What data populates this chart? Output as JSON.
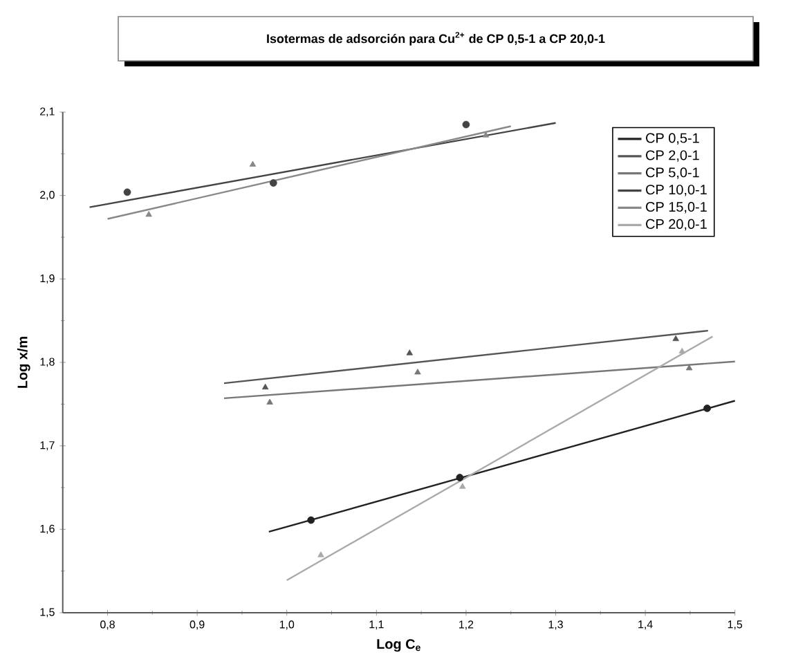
{
  "chart_data": {
    "type": "scatter",
    "title": "Isotermas de adsorción para Cu$^{2+}$ de CP 0,5-1 a CP 20,0-1",
    "xlabel": "Log C$_{e}$",
    "ylabel": "Log x/m",
    "xlim": [
      0.75,
      1.5
    ],
    "ylim": [
      1.5,
      2.1
    ],
    "xticks": [
      {
        "value": 0.8,
        "label": "0,8"
      },
      {
        "value": 0.9,
        "label": "0,9"
      },
      {
        "value": 1.0,
        "label": "1,0"
      },
      {
        "value": 1.1,
        "label": "1,1"
      },
      {
        "value": 1.2,
        "label": "1,2"
      },
      {
        "value": 1.3,
        "label": "1,3"
      },
      {
        "value": 1.4,
        "label": "1,4"
      },
      {
        "value": 1.5,
        "label": "1,5"
      }
    ],
    "yticks": [
      {
        "value": 1.5,
        "label": "1,5"
      },
      {
        "value": 1.6,
        "label": "1,6"
      },
      {
        "value": 1.7,
        "label": "1,7"
      },
      {
        "value": 1.8,
        "label": "1,8"
      },
      {
        "value": 1.9,
        "label": "1,9"
      },
      {
        "value": 2.0,
        "label": "2,0"
      },
      {
        "value": 2.1,
        "label": "2,1"
      }
    ],
    "grid": false,
    "legend": "top right",
    "series": [
      {
        "name": "CP 0,5-1",
        "type": "line",
        "marker": "none",
        "color": "#222222",
        "x": [
          0.98,
          1.5
        ],
        "values": [
          1.597,
          1.754
        ]
      },
      {
        "name": "CP 2,0-1",
        "type": "line",
        "marker": "none",
        "color": "#555555",
        "x": [
          0.93,
          1.47
        ],
        "values": [
          1.775,
          1.838
        ]
      },
      {
        "name": "CP 5,0-1",
        "type": "line",
        "marker": "none",
        "color": "#777777",
        "x": [
          0.93,
          1.5
        ],
        "values": [
          1.757,
          1.801
        ]
      },
      {
        "name": "CP 10,0-1",
        "type": "line",
        "marker": "none",
        "color": "#444444",
        "x": [
          0.78,
          1.3
        ],
        "values": [
          1.986,
          2.087
        ]
      },
      {
        "name": "CP 15,0-1",
        "type": "line",
        "marker": "none",
        "color": "#888888",
        "x": [
          0.8,
          1.25
        ],
        "values": [
          1.972,
          2.083
        ]
      },
      {
        "name": "CP 20,0-1",
        "type": "line",
        "marker": "none",
        "color": "#aaaaaa",
        "x": [
          1.0,
          1.475
        ],
        "values": [
          1.539,
          1.831
        ]
      },
      {
        "marker": "circle",
        "color": "#222222",
        "x": [
          1.027,
          1.193,
          1.469
        ],
        "values": [
          1.611,
          1.662,
          1.745
        ]
      },
      {
        "marker": "triangle",
        "color": "#555555",
        "x": [
          0.976,
          1.137,
          1.434
        ],
        "values": [
          1.77,
          1.811,
          1.828
        ]
      },
      {
        "marker": "triangle",
        "color": "#777777",
        "x": [
          0.981,
          1.146,
          1.449
        ],
        "values": [
          1.752,
          1.788,
          1.793
        ]
      },
      {
        "marker": "circle",
        "color": "#444444",
        "x": [
          0.822,
          0.985,
          1.2
        ],
        "values": [
          2.004,
          2.015,
          2.085
        ]
      },
      {
        "marker": "triangle",
        "color": "#888888",
        "x": [
          0.846,
          0.962,
          1.222
        ],
        "values": [
          1.977,
          2.037,
          2.072
        ]
      },
      {
        "marker": "triangle",
        "color": "#aaaaaa",
        "x": [
          1.038,
          1.196,
          1.441
        ],
        "values": [
          1.569,
          1.651,
          1.813
        ]
      }
    ]
  }
}
